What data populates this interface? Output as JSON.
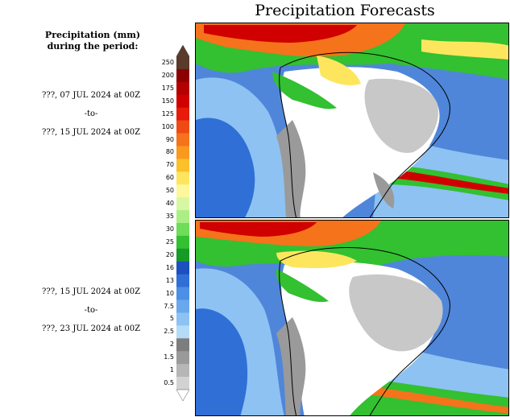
{
  "title": "Precipitation Forecasts",
  "legend_heading": [
    "Precipitation (mm)",
    "during the period:"
  ],
  "periods": [
    {
      "start": "???, 07 JUL 2024 at 00Z",
      "sep": "-to-",
      "end": "???, 15 JUL 2024 at 00Z"
    },
    {
      "start": "???, 15 JUL 2024 at 00Z",
      "sep": "-to-",
      "end": "???, 23 JUL 2024 at 00Z"
    }
  ],
  "colorbar": {
    "labels": [
      "250",
      "200",
      "175",
      "150",
      "125",
      "100",
      "90",
      "80",
      "70",
      "60",
      "50",
      "40",
      "35",
      "30",
      "25",
      "20",
      "16",
      "13",
      "10",
      "7.5",
      "5",
      "2.5",
      "2",
      "1.5",
      "1",
      "0.5"
    ],
    "colors": [
      "#5a3a2a",
      "#8b0000",
      "#b30000",
      "#d10000",
      "#e81b0b",
      "#f04a14",
      "#f5731b",
      "#f99a1f",
      "#fbc02a",
      "#fde65e",
      "#fdf89c",
      "#d7f7a3",
      "#a9ef86",
      "#6fdc5a",
      "#33c031",
      "#179a26",
      "#1c4fbf",
      "#2f6fd6",
      "#4b8fe6",
      "#6aa8ee",
      "#8dc2f3",
      "#b4dcf8",
      "#7d7d7d",
      "#9a9a9a",
      "#b6b6b6",
      "#d2d2d2"
    ],
    "top_arrow_color": "#5a3a2a",
    "bottom_arrow_color": "#ffffff"
  },
  "map_colors": {
    "ocean_base": "#4f86d9",
    "land_dry": "#ffffff",
    "light_gray": "#c8c8c8",
    "gray": "#9a9a9a",
    "light_blue": "#8dc2f3",
    "blue": "#2f6fd6",
    "green": "#33c031",
    "dark_green": "#179a26",
    "yellow": "#fde65e",
    "orange": "#f5731b",
    "red": "#d10000",
    "coast": "#000000"
  }
}
